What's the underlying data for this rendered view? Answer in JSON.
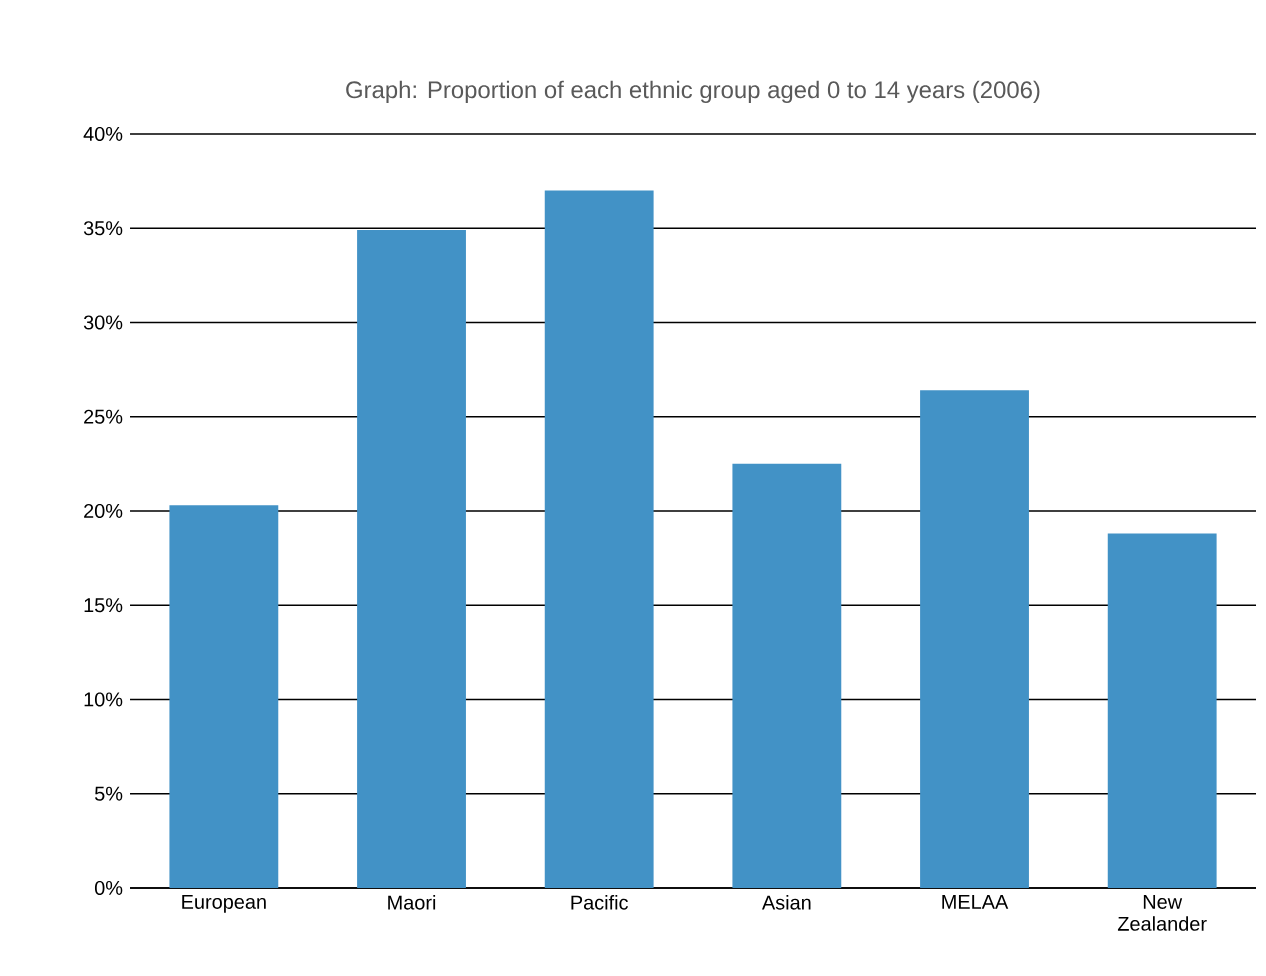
{
  "chart_data": {
    "type": "bar",
    "title": "Graph: Proportion of each ethnic group aged 0 to 14 years (2006)",
    "categories": [
      "European",
      "Maori",
      "Pacific",
      "Asian",
      "MELAA",
      "New Zealander"
    ],
    "values": [
      20.3,
      34.9,
      37.0,
      22.5,
      26.4,
      18.8
    ],
    "color": "#4292c6",
    "ylim": [
      0,
      40
    ],
    "yticks": [
      {
        "value": 0,
        "label": "0%"
      },
      {
        "value": 5,
        "label": "5%"
      },
      {
        "value": 10,
        "label": "10%"
      },
      {
        "value": 15,
        "label": "15%"
      },
      {
        "value": 20,
        "label": "20%"
      },
      {
        "value": 25,
        "label": "25%"
      },
      {
        "value": 30,
        "label": "30%"
      },
      {
        "value": 35,
        "label": "35%"
      },
      {
        "value": 40,
        "label": "40%"
      }
    ],
    "grid": "y"
  }
}
